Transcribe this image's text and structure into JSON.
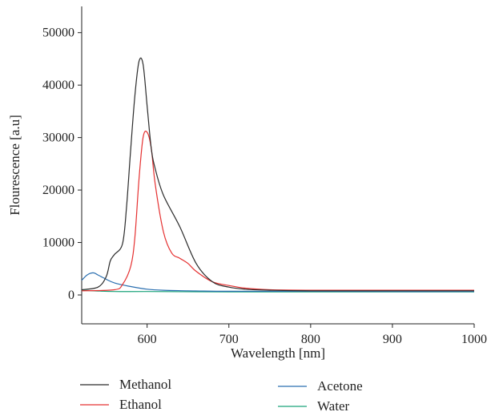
{
  "chart_data": {
    "type": "line",
    "xlabel": "Wavelength [nm]",
    "ylabel": "Flourescence [a.u]",
    "xlim": [
      520,
      1000
    ],
    "ylim": [
      -5500,
      55000
    ],
    "x_ticks": [
      600,
      700,
      800,
      900,
      1000
    ],
    "y_ticks": [
      0,
      10000,
      20000,
      30000,
      40000,
      50000
    ],
    "grid": false,
    "legend_position": "bottom",
    "series": [
      {
        "name": "Methanol",
        "color": "#2b2b2b",
        "x": [
          520,
          540,
          550,
          555,
          560,
          570,
          575,
          580,
          585,
          590,
          595,
          600,
          605,
          610,
          620,
          640,
          660,
          680,
          700,
          720,
          750,
          800,
          900,
          1000
        ],
        "y": [
          1000,
          1500,
          3500,
          6500,
          7700,
          9800,
          17000,
          28000,
          38000,
          44500,
          44000,
          36000,
          28000,
          24000,
          19000,
          13000,
          6000,
          2500,
          1500,
          1100,
          900,
          800,
          800,
          800
        ]
      },
      {
        "name": "Ethanol",
        "color": "#e53030",
        "x": [
          520,
          560,
          570,
          580,
          585,
          590,
          595,
          600,
          605,
          610,
          620,
          630,
          640,
          650,
          660,
          680,
          700,
          720,
          750,
          800,
          900,
          1000
        ],
        "y": [
          800,
          1000,
          2000,
          5500,
          11000,
          22000,
          30000,
          31000,
          28000,
          21000,
          12000,
          8000,
          7000,
          6000,
          4500,
          2500,
          1800,
          1300,
          1000,
          900,
          900,
          900
        ]
      },
      {
        "name": "Acetone",
        "color": "#2a6fb0",
        "x": [
          520,
          525,
          530,
          535,
          540,
          550,
          560,
          580,
          600,
          620,
          650,
          700,
          800,
          900,
          1000
        ],
        "y": [
          2800,
          3600,
          4100,
          4200,
          3800,
          3000,
          2300,
          1600,
          1100,
          900,
          800,
          700,
          700,
          650,
          650
        ]
      },
      {
        "name": "Water",
        "color": "#1aa37a",
        "x": [
          520,
          540,
          560,
          600,
          700,
          800,
          900,
          1000
        ],
        "y": [
          900,
          750,
          650,
          650,
          600,
          600,
          600,
          600
        ]
      }
    ]
  }
}
